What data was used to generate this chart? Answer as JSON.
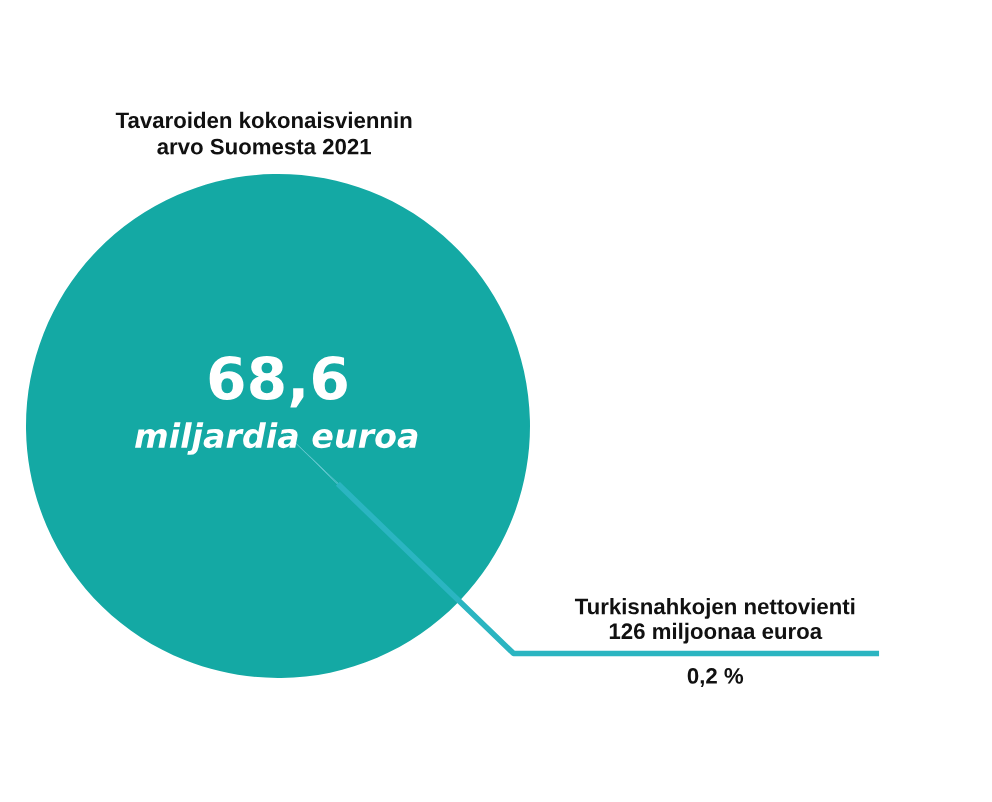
{
  "chart_data": {
    "type": "pie",
    "title": "Tavaroiden kokonaisviennin\narvo Suomesta 2021",
    "categories": [
      null,
      "Turkisnahkojen nettovienti\n126 miljoonaa euroa"
    ],
    "values": [
      99.8,
      0.2
    ],
    "colors": [
      "#14a9a4",
      "#2bb5c1"
    ],
    "value_labels": [
      null,
      "0,2 %"
    ],
    "annotations": [
      "68,6\nmiljardia euroa"
    ]
  }
}
